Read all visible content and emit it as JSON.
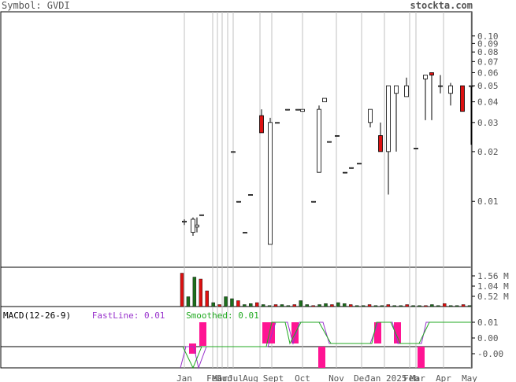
{
  "header": {
    "symbol_label": "Symbol: GVDI",
    "site": "stockta.com"
  },
  "indicator": {
    "name": "MACD(12-26-9)",
    "fast_label": "FastLine: 0.01",
    "smooth_label": "Smoothed: 0.01",
    "fast_color": "#9933cc",
    "smooth_color": "#22aa22"
  },
  "chart_data": [
    {
      "type": "candlestick",
      "title": "Symbol: GVDI",
      "y_scale": "log",
      "ylim": [
        0.004,
        0.14
      ],
      "y_ticks": [
        "0.10",
        "0.09",
        "0.08",
        "0.07",
        "0.06",
        "0.05",
        "0.04",
        "0.03",
        "0.02",
        "0.01"
      ],
      "x_labels": [
        "Jan",
        "Feb",
        "Mar",
        "Jun",
        "Jul",
        "Aug",
        "Sept",
        "Oct",
        "Nov",
        "Dec",
        "Jan 2025",
        "Feb",
        "Mar",
        "Apr",
        "May"
      ],
      "colors": {
        "up": "#ffffff",
        "down": "#dd1111",
        "outline": "#000000",
        "grid": "#c0c0c0"
      },
      "candles": [
        {
          "date": "Jan-a",
          "o": 0.0075,
          "h": 0.0078,
          "l": 0.0072,
          "c": 0.0076
        },
        {
          "date": "Feb-a",
          "o": 0.0065,
          "h": 0.008,
          "l": 0.0062,
          "c": 0.0078
        },
        {
          "date": "Feb-b",
          "o": 0.007,
          "h": 0.008,
          "l": 0.0065,
          "c": 0.0072
        },
        {
          "date": "Mar",
          "o": 0.0083,
          "h": 0.0083,
          "l": 0.0083,
          "c": 0.0083
        },
        {
          "date": "Mar-b",
          "o": 0.02,
          "h": 0.02,
          "l": 0.02,
          "c": 0.02
        },
        {
          "date": "Jun",
          "o": 0.01,
          "h": 0.01,
          "l": 0.01,
          "c": 0.01
        },
        {
          "date": "Jun-b",
          "o": 0.0065,
          "h": 0.0065,
          "l": 0.0065,
          "c": 0.0065
        },
        {
          "date": "Jul",
          "o": 0.011,
          "h": 0.011,
          "l": 0.011,
          "c": 0.011
        },
        {
          "date": "Jul-b",
          "o": 0.033,
          "h": 0.036,
          "l": 0.026,
          "c": 0.026
        },
        {
          "date": "Aug",
          "o": 0.0055,
          "h": 0.032,
          "l": 0.0055,
          "c": 0.03
        },
        {
          "date": "Aug-b",
          "o": 0.03,
          "h": 0.03,
          "l": 0.03,
          "c": 0.03
        },
        {
          "date": "Aug-c",
          "o": 0.036,
          "h": 0.036,
          "l": 0.036,
          "c": 0.036
        },
        {
          "date": "Sept",
          "o": 0.036,
          "h": 0.036,
          "l": 0.036,
          "c": 0.036
        },
        {
          "date": "Sept-b",
          "o": 0.035,
          "h": 0.036,
          "l": 0.035,
          "c": 0.036
        },
        {
          "date": "Sept-c",
          "o": 0.01,
          "h": 0.01,
          "l": 0.01,
          "c": 0.01
        },
        {
          "date": "Sept-d",
          "o": 0.015,
          "h": 0.038,
          "l": 0.015,
          "c": 0.036
        },
        {
          "date": "Oct",
          "o": 0.04,
          "h": 0.042,
          "l": 0.04,
          "c": 0.042
        },
        {
          "date": "Oct-b",
          "o": 0.023,
          "h": 0.023,
          "l": 0.023,
          "c": 0.023
        },
        {
          "date": "Oct-c",
          "o": 0.025,
          "h": 0.025,
          "l": 0.025,
          "c": 0.025
        },
        {
          "date": "Nov",
          "o": 0.015,
          "h": 0.015,
          "l": 0.015,
          "c": 0.015
        },
        {
          "date": "Nov-b",
          "o": 0.016,
          "h": 0.016,
          "l": 0.016,
          "c": 0.016
        },
        {
          "date": "Nov-c",
          "o": 0.017,
          "h": 0.017,
          "l": 0.017,
          "c": 0.017
        },
        {
          "date": "Dec",
          "o": 0.03,
          "h": 0.036,
          "l": 0.028,
          "c": 0.036
        },
        {
          "date": "Dec-b",
          "o": 0.025,
          "h": 0.03,
          "l": 0.02,
          "c": 0.02
        },
        {
          "date": "Dec-c",
          "o": 0.02,
          "h": 0.05,
          "l": 0.011,
          "c": 0.05
        },
        {
          "date": "Jan-25",
          "o": 0.045,
          "h": 0.05,
          "l": 0.02,
          "c": 0.05
        },
        {
          "date": "Jan-25b",
          "o": 0.043,
          "h": 0.056,
          "l": 0.043,
          "c": 0.05
        },
        {
          "date": "Feb-25",
          "o": 0.021,
          "h": 0.021,
          "l": 0.021,
          "c": 0.021
        },
        {
          "date": "Feb-25b",
          "o": 0.055,
          "h": 0.058,
          "l": 0.031,
          "c": 0.058
        },
        {
          "date": "Mar-25",
          "o": 0.06,
          "h": 0.06,
          "l": 0.031,
          "c": 0.058
        },
        {
          "date": "Mar-25b",
          "o": 0.05,
          "h": 0.058,
          "l": 0.045,
          "c": 0.05
        },
        {
          "date": "Apr",
          "o": 0.045,
          "h": 0.052,
          "l": 0.038,
          "c": 0.05
        },
        {
          "date": "Apr-b",
          "o": 0.05,
          "h": 0.05,
          "l": 0.035,
          "c": 0.035
        },
        {
          "date": "May",
          "o": 0.05,
          "h": 0.05,
          "l": 0.022,
          "c": 0.05
        }
      ]
    },
    {
      "type": "bar",
      "title": "Volume",
      "y_ticks": [
        "1.56 M",
        "1.04 M",
        "0.52 M"
      ],
      "ylim": [
        0,
        2.0
      ],
      "values_millions": [
        1.7,
        0.5,
        1.5,
        1.4,
        0.8,
        0.2,
        0.1,
        0.5,
        0.4,
        0.3,
        0.1,
        0.15,
        0.2,
        0.1,
        0.05,
        0.1,
        0.1,
        0.05,
        0.1,
        0.3,
        0.1,
        0.05,
        0.1,
        0.15,
        0.1,
        0.2,
        0.15,
        0.1,
        0.05,
        0.05,
        0.1,
        0.05,
        0.05,
        0.1,
        0.05,
        0.05,
        0.1,
        0.05,
        0.05,
        0.05,
        0.1,
        0.05,
        0.15,
        0.05,
        0.05,
        0.1,
        0.05
      ],
      "up_color": "#1d6e1d",
      "down_color": "#dd1111"
    },
    {
      "type": "line",
      "title": "MACD(12-26-9)",
      "y_ticks": [
        "0.01",
        "0.00",
        "-0.00"
      ],
      "series": [
        {
          "name": "FastLine: 0.01",
          "color": "#9933cc"
        },
        {
          "name": "Smoothed: 0.01",
          "color": "#22aa22"
        }
      ],
      "histogram_color": "#ff1493"
    }
  ]
}
